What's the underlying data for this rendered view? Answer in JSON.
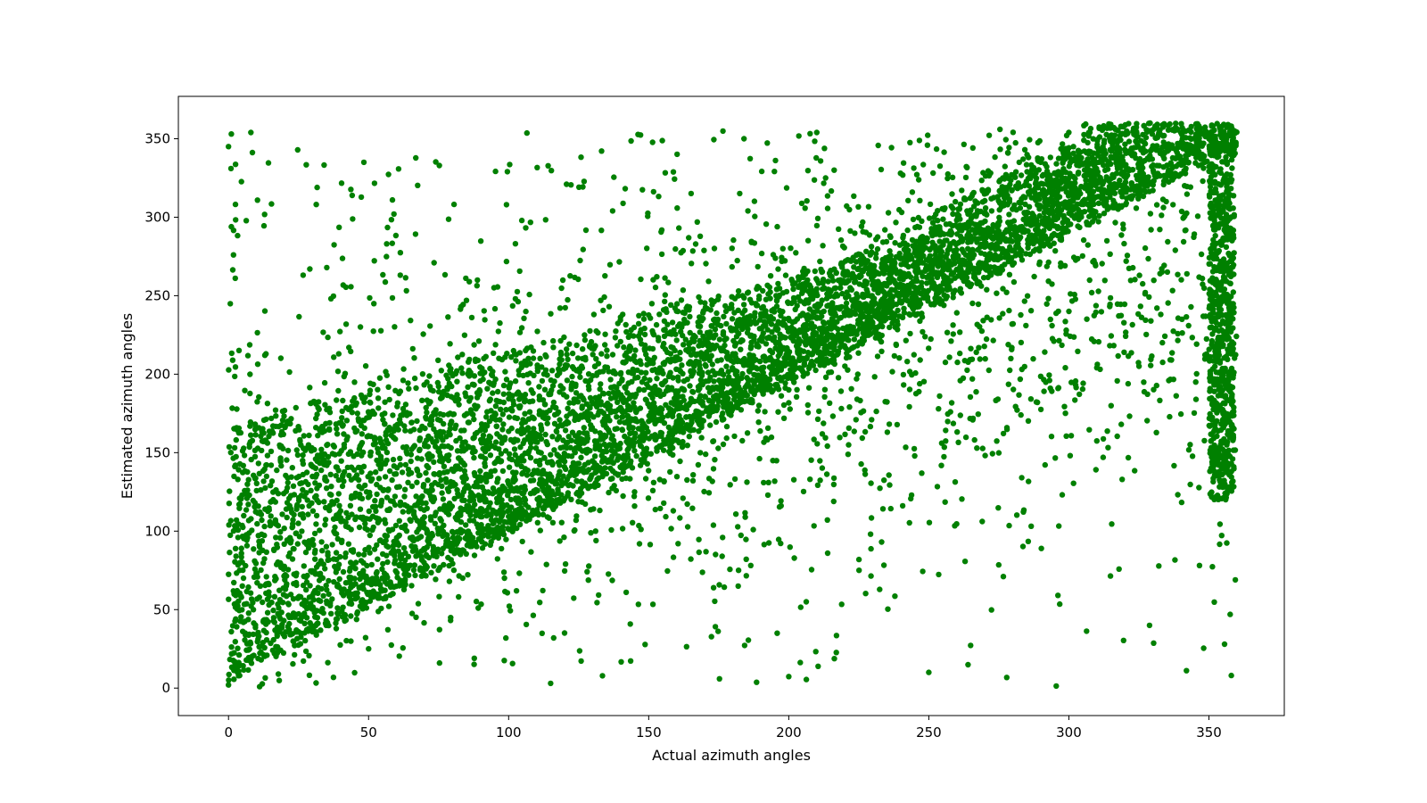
{
  "chart_data": {
    "type": "scatter",
    "title": "",
    "xlabel": "Actual azimuth angles",
    "ylabel": "Estimated azimuth angles",
    "xlim": [
      -17.9,
      376.9
    ],
    "ylim": [
      -17.5,
      377.0
    ],
    "xticks": [
      0,
      50,
      100,
      150,
      200,
      250,
      300,
      350
    ],
    "yticks": [
      0,
      50,
      100,
      150,
      200,
      250,
      300,
      350
    ],
    "grid": false,
    "legend": "none",
    "series": [
      {
        "color": "#008000",
        "marker": "circle",
        "trend": {
          "x": [
            0,
            360
          ],
          "y_center": [
            100,
            265
          ]
        },
        "description_points": [
          {
            "x": 0,
            "y": 2
          },
          {
            "x": 0,
            "y": 345
          },
          {
            "x": 1,
            "y": 353
          },
          {
            "x": 50,
            "y": 25
          },
          {
            "x": 100,
            "y": 130
          },
          {
            "x": 115,
            "y": 3
          },
          {
            "x": 150,
            "y": 170
          },
          {
            "x": 200,
            "y": 190
          },
          {
            "x": 210,
            "y": 354
          },
          {
            "x": 250,
            "y": 10
          },
          {
            "x": 300,
            "y": 240
          },
          {
            "x": 350,
            "y": 350
          },
          {
            "x": 358,
            "y": 358
          },
          {
            "x": 358,
            "y": 8
          }
        ]
      }
    ]
  }
}
